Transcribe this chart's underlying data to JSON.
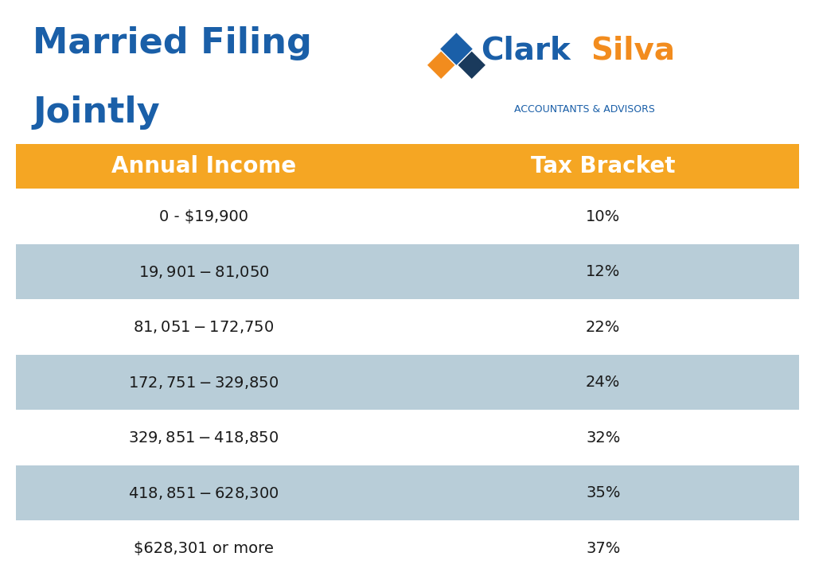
{
  "title_line1": "Married Filing",
  "title_line2": "Jointly",
  "title_color": "#1a5fa8",
  "company_name_clark": "Clark",
  "company_name_silva": "Silva",
  "company_subtitle": "ACCOUNTANTS & ADVISORS",
  "company_clark_color": "#1a5fa8",
  "company_silva_color": "#f28c1e",
  "company_subtitle_color": "#1a5fa8",
  "header_bg_color": "#f5a623",
  "header_text_color": "#ffffff",
  "col1_header": "Annual Income",
  "col2_header": "Tax Bracket",
  "row_bg_white": "#ffffff",
  "row_bg_blue": "#b8cdd8",
  "bg_color": "#ffffff",
  "rows": [
    {
      "income": "0 - $19,900",
      "bracket": "10%",
      "bg": "#ffffff"
    },
    {
      "income": "$19,901 - $81,050",
      "bracket": "12%",
      "bg": "#b8cdd8"
    },
    {
      "income": "$81,051 - $172,750",
      "bracket": "22%",
      "bg": "#ffffff"
    },
    {
      "income": "$172,751 - $329,850",
      "bracket": "24%",
      "bg": "#b8cdd8"
    },
    {
      "income": "$329,851 - $418,850",
      "bracket": "32%",
      "bg": "#ffffff"
    },
    {
      "income": "$418,851 - $628,300",
      "bracket": "35%",
      "bg": "#b8cdd8"
    },
    {
      "income": "$628,301 or more",
      "bracket": "37%",
      "bg": "#ffffff"
    }
  ],
  "figsize": [
    10.24,
    7.24
  ],
  "dpi": 100
}
